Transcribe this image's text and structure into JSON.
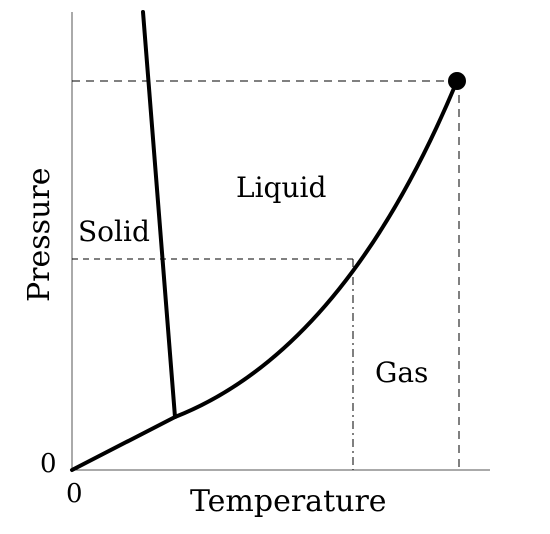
{
  "diagram": {
    "type": "phase-diagram",
    "regions": {
      "solid": "Solid",
      "liquid": "Liquid",
      "gas": "Gas"
    },
    "axes": {
      "x_label": "Temperature",
      "y_label": "Pressure",
      "x_origin": "0",
      "y_origin": "0"
    },
    "features": [
      "fusion-curve",
      "vaporization-curve",
      "sublimation-curve",
      "triple-point",
      "critical-point"
    ],
    "critical_point_marker": "filled-circle",
    "reference_lines": [
      "dashed-horizontal-at-critical-pressure",
      "dashed-vertical-at-critical-temperature",
      "dashed-horizontal-reference",
      "dash-dot-vertical-reference"
    ],
    "stroke_color": "#000000"
  }
}
